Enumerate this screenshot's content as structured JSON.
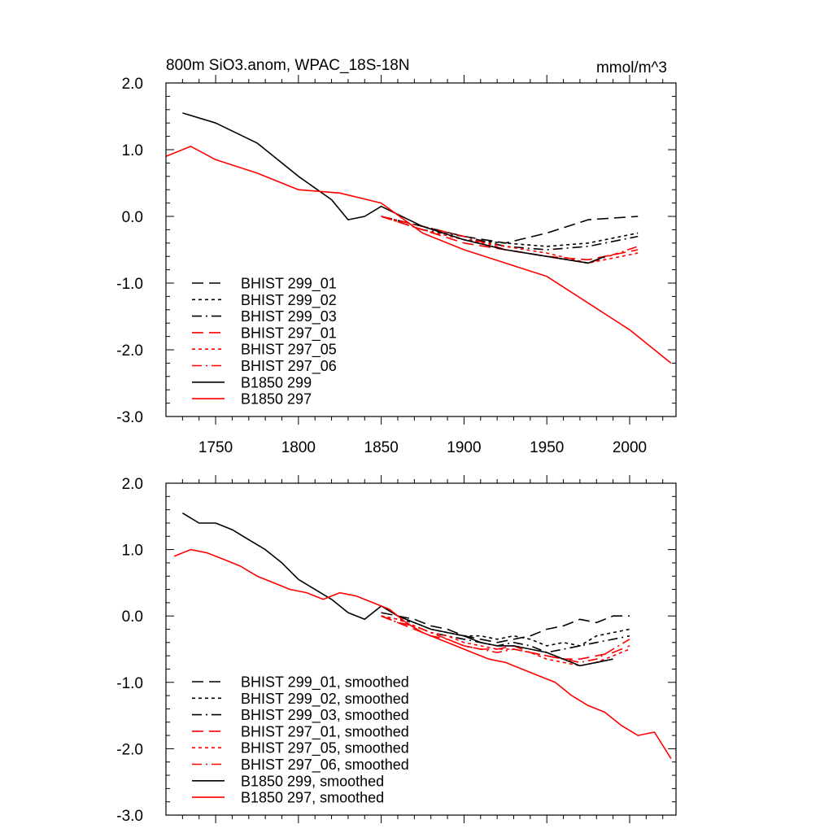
{
  "chart_data": [
    {
      "type": "line",
      "title": "800m SiO3.anom, WPAC_18S-18N",
      "units": "mmol/m^3",
      "xlabel": "",
      "ylabel": "",
      "xlim": [
        1720,
        2028
      ],
      "ylim": [
        -3.0,
        2.0
      ],
      "x_ticks": [
        1750,
        1800,
        1850,
        1900,
        1950,
        2000
      ],
      "x_tick_labels": [
        "1750",
        "1800",
        "1850",
        "1900",
        "1950",
        "2000"
      ],
      "y_ticks": [
        2.0,
        1.0,
        0.0,
        -1.0,
        -2.0,
        -3.0
      ],
      "y_tick_labels": [
        "2.0",
        "1.0",
        "0.0",
        "-1.0",
        "-2.0",
        "-3.0"
      ],
      "legend_position": "lower-left",
      "series": [
        {
          "name": "BHIST 299_01",
          "color": "#000000",
          "dash": "long-dash",
          "x": [
            1850,
            1875,
            1900,
            1925,
            1950,
            1975,
            2005
          ],
          "y": [
            0.0,
            -0.15,
            -0.3,
            -0.4,
            -0.25,
            -0.05,
            0.0
          ]
        },
        {
          "name": "BHIST 299_02",
          "color": "#000000",
          "dash": "short-dash",
          "x": [
            1850,
            1875,
            1900,
            1925,
            1950,
            1975,
            2005
          ],
          "y": [
            0.0,
            -0.15,
            -0.35,
            -0.4,
            -0.45,
            -0.4,
            -0.25
          ]
        },
        {
          "name": "BHIST 299_03",
          "color": "#000000",
          "dash": "dash-dot",
          "x": [
            1850,
            1875,
            1900,
            1925,
            1950,
            1975,
            2005
          ],
          "y": [
            0.0,
            -0.2,
            -0.3,
            -0.45,
            -0.5,
            -0.45,
            -0.3
          ]
        },
        {
          "name": "BHIST 297_01",
          "color": "#ff0000",
          "dash": "long-dash",
          "x": [
            1850,
            1875,
            1900,
            1925,
            1950,
            1975,
            2005
          ],
          "y": [
            0.0,
            -0.2,
            -0.4,
            -0.5,
            -0.6,
            -0.65,
            -0.5
          ]
        },
        {
          "name": "BHIST 297_05",
          "color": "#ff0000",
          "dash": "short-dash",
          "x": [
            1850,
            1875,
            1900,
            1925,
            1950,
            1975,
            2005
          ],
          "y": [
            0.0,
            -0.2,
            -0.35,
            -0.45,
            -0.55,
            -0.7,
            -0.55
          ]
        },
        {
          "name": "BHIST 297_06",
          "color": "#ff0000",
          "dash": "dash-dot",
          "x": [
            1850,
            1875,
            1900,
            1925,
            1950,
            1975,
            2005
          ],
          "y": [
            0.0,
            -0.15,
            -0.3,
            -0.5,
            -0.6,
            -0.7,
            -0.45
          ]
        },
        {
          "name": "B1850 299",
          "color": "#000000",
          "dash": "solid",
          "x": [
            1730,
            1750,
            1775,
            1800,
            1820,
            1830,
            1840,
            1850,
            1875,
            1900,
            1925,
            1950,
            1975,
            1985
          ],
          "y": [
            1.55,
            1.4,
            1.1,
            0.6,
            0.25,
            -0.05,
            0.0,
            0.15,
            -0.15,
            -0.35,
            -0.5,
            -0.6,
            -0.7,
            -0.6
          ]
        },
        {
          "name": "B1850 297",
          "color": "#ff0000",
          "dash": "solid",
          "x": [
            1720,
            1735,
            1750,
            1775,
            1800,
            1825,
            1850,
            1875,
            1900,
            1925,
            1950,
            1975,
            2000,
            2025
          ],
          "y": [
            0.9,
            1.05,
            0.85,
            0.65,
            0.4,
            0.35,
            0.2,
            -0.25,
            -0.5,
            -0.7,
            -0.9,
            -1.3,
            -1.7,
            -2.2
          ]
        }
      ]
    },
    {
      "type": "line",
      "title": "",
      "units": "",
      "xlabel": "",
      "ylabel": "",
      "xlim": [
        1720,
        2028
      ],
      "ylim": [
        -3.0,
        2.0
      ],
      "x_ticks": [
        1750,
        1800,
        1850,
        1900,
        1950,
        2000
      ],
      "x_tick_labels": [],
      "y_ticks": [
        2.0,
        1.0,
        0.0,
        -1.0,
        -2.0,
        -3.0
      ],
      "y_tick_labels": [
        "2.0",
        "1.0",
        "0.0",
        "-1.0",
        "-2.0",
        "-3.0"
      ],
      "legend_position": "lower-left",
      "series": [
        {
          "name": "BHIST 299_01, smoothed",
          "color": "#000000",
          "dash": "long-dash",
          "x": [
            1850,
            1860,
            1870,
            1880,
            1890,
            1900,
            1910,
            1920,
            1930,
            1940,
            1950,
            1960,
            1970,
            1980,
            1990,
            2000
          ],
          "y": [
            0.05,
            0.0,
            -0.05,
            -0.15,
            -0.2,
            -0.3,
            -0.35,
            -0.4,
            -0.35,
            -0.3,
            -0.2,
            -0.15,
            -0.05,
            -0.1,
            0.0,
            0.0
          ]
        },
        {
          "name": "BHIST 299_02, smoothed",
          "color": "#000000",
          "dash": "short-dash",
          "x": [
            1850,
            1860,
            1870,
            1880,
            1890,
            1900,
            1910,
            1920,
            1930,
            1940,
            1950,
            1960,
            1970,
            1980,
            1990,
            2000
          ],
          "y": [
            0.0,
            -0.05,
            -0.1,
            -0.2,
            -0.25,
            -0.3,
            -0.3,
            -0.35,
            -0.3,
            -0.35,
            -0.45,
            -0.4,
            -0.45,
            -0.3,
            -0.25,
            -0.2
          ]
        },
        {
          "name": "BHIST 299_03, smoothed",
          "color": "#000000",
          "dash": "dash-dot",
          "x": [
            1850,
            1860,
            1870,
            1880,
            1890,
            1900,
            1910,
            1920,
            1930,
            1940,
            1950,
            1960,
            1970,
            1980,
            1990,
            2000
          ],
          "y": [
            0.0,
            -0.1,
            -0.15,
            -0.25,
            -0.3,
            -0.35,
            -0.4,
            -0.45,
            -0.4,
            -0.45,
            -0.55,
            -0.5,
            -0.45,
            -0.4,
            -0.35,
            -0.3
          ]
        },
        {
          "name": "BHIST 297_01, smoothed",
          "color": "#ff0000",
          "dash": "long-dash",
          "x": [
            1850,
            1860,
            1870,
            1880,
            1890,
            1900,
            1910,
            1920,
            1930,
            1940,
            1950,
            1960,
            1970,
            1980,
            1990,
            2000
          ],
          "y": [
            0.0,
            -0.1,
            -0.2,
            -0.3,
            -0.35,
            -0.45,
            -0.5,
            -0.5,
            -0.45,
            -0.55,
            -0.6,
            -0.65,
            -0.65,
            -0.6,
            -0.55,
            -0.45
          ]
        },
        {
          "name": "BHIST 297_05, smoothed",
          "color": "#ff0000",
          "dash": "short-dash",
          "x": [
            1850,
            1860,
            1870,
            1880,
            1890,
            1900,
            1910,
            1920,
            1930,
            1940,
            1950,
            1960,
            1970,
            1980,
            1990,
            2000
          ],
          "y": [
            0.0,
            -0.05,
            -0.15,
            -0.25,
            -0.3,
            -0.4,
            -0.45,
            -0.5,
            -0.5,
            -0.55,
            -0.65,
            -0.7,
            -0.75,
            -0.7,
            -0.6,
            -0.5
          ]
        },
        {
          "name": "BHIST 297_06, smoothed",
          "color": "#ff0000",
          "dash": "dash-dot",
          "x": [
            1850,
            1860,
            1870,
            1880,
            1890,
            1900,
            1910,
            1920,
            1930,
            1940,
            1950,
            1960,
            1970,
            1980,
            1990,
            2000
          ],
          "y": [
            0.0,
            -0.1,
            -0.15,
            -0.25,
            -0.35,
            -0.45,
            -0.5,
            -0.55,
            -0.5,
            -0.55,
            -0.6,
            -0.65,
            -0.7,
            -0.65,
            -0.5,
            -0.35
          ]
        },
        {
          "name": "B1850 299, smoothed",
          "color": "#000000",
          "dash": "solid",
          "x": [
            1730,
            1740,
            1750,
            1760,
            1770,
            1780,
            1790,
            1800,
            1810,
            1820,
            1830,
            1840,
            1850,
            1860,
            1870,
            1880,
            1890,
            1900,
            1910,
            1920,
            1930,
            1940,
            1950,
            1960,
            1970,
            1980,
            1990
          ],
          "y": [
            1.55,
            1.4,
            1.4,
            1.3,
            1.15,
            1.0,
            0.8,
            0.55,
            0.4,
            0.25,
            0.05,
            -0.05,
            0.15,
            0.0,
            -0.1,
            -0.2,
            -0.25,
            -0.3,
            -0.4,
            -0.45,
            -0.45,
            -0.5,
            -0.55,
            -0.65,
            -0.75,
            -0.7,
            -0.65
          ]
        },
        {
          "name": "B1850 297, smoothed",
          "color": "#ff0000",
          "dash": "solid",
          "x": [
            1725,
            1735,
            1745,
            1755,
            1765,
            1775,
            1785,
            1795,
            1805,
            1815,
            1825,
            1835,
            1845,
            1855,
            1865,
            1875,
            1885,
            1895,
            1905,
            1915,
            1925,
            1935,
            1945,
            1955,
            1965,
            1975,
            1985,
            1995,
            2005,
            2015,
            2025
          ],
          "y": [
            0.9,
            1.0,
            0.95,
            0.85,
            0.75,
            0.6,
            0.5,
            0.4,
            0.35,
            0.25,
            0.35,
            0.3,
            0.2,
            0.1,
            -0.1,
            -0.25,
            -0.35,
            -0.45,
            -0.55,
            -0.65,
            -0.7,
            -0.8,
            -0.9,
            -1.0,
            -1.2,
            -1.35,
            -1.45,
            -1.65,
            -1.8,
            -1.75,
            -2.15
          ]
        }
      ]
    }
  ]
}
